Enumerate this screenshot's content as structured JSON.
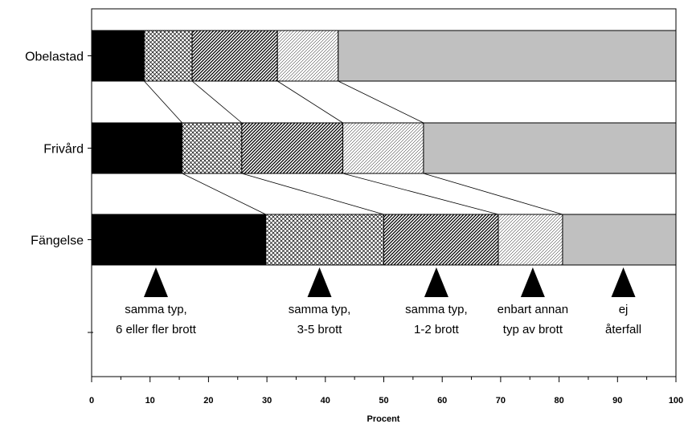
{
  "chart_data": {
    "type": "bar",
    "orientation": "horizontal",
    "stacked": true,
    "categories": [
      "Obelastad",
      "Frivård",
      "Fängelse"
    ],
    "series": [
      {
        "name": "samma typ, 6 eller fler brott",
        "values": [
          9,
          15.5,
          29.8
        ],
        "fill": "#000000",
        "pattern": "solid"
      },
      {
        "name": "samma typ, 3-5 brott",
        "values": [
          8.2,
          10.2,
          20.2
        ],
        "fill": "#ffffff",
        "pattern": "crosshatch"
      },
      {
        "name": "samma typ, 1-2 brott",
        "values": [
          14.6,
          17.3,
          19.6
        ],
        "fill": "#ffffff",
        "pattern": "dense-diagonal"
      },
      {
        "name": "enbart annan typ av brott",
        "values": [
          10.4,
          13.8,
          11
        ],
        "fill": "#ffffff",
        "pattern": "light-diagonal"
      },
      {
        "name": "ej återfall",
        "values": [
          57.8,
          43.2,
          19.4
        ],
        "fill": "#c0c0c0",
        "pattern": "solid"
      }
    ],
    "annotations": [
      {
        "lines": [
          "samma typ,",
          "6 eller fler brott"
        ],
        "x": 11
      },
      {
        "lines": [
          "samma typ,",
          "3-5 brott"
        ],
        "x": 39
      },
      {
        "lines": [
          "samma typ,",
          "1-2 brott"
        ],
        "x": 59
      },
      {
        "lines": [
          "enbart annan",
          "typ av brott"
        ],
        "x": 75.5
      },
      {
        "lines": [
          "ej",
          "återfall"
        ],
        "x": 91
      }
    ],
    "xlabel": "Procent",
    "xlim": [
      0,
      100
    ],
    "xticks": [
      "0",
      "10",
      "20",
      "30",
      "40",
      "50",
      "60",
      "70",
      "80",
      "90",
      "100"
    ],
    "grid": false,
    "legend": "none"
  }
}
